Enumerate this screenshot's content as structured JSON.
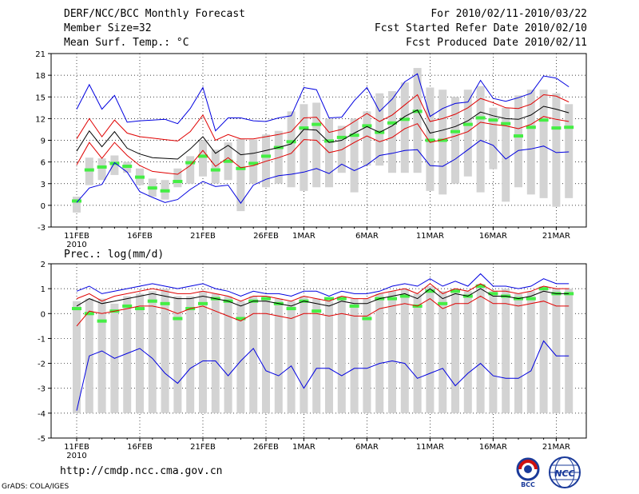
{
  "header": {
    "title": "DERF/NCC/BCC Monthly Forecast",
    "member_size": "Member Size=32",
    "variable": "Mean Surf. Temp.: °C",
    "period": "For 2010/02/11-2010/03/22",
    "fcst_started": "Fcst Started Refer Date 2010/02/10",
    "fcst_produced": "Fcst Produced Date 2010/02/11"
  },
  "footer": {
    "url": "http://cmdp.ncc.cma.gov.cn",
    "grads": "GrADS: COLA/IGES",
    "logo_bcc": "BCC",
    "logo_ncc": "NCC"
  },
  "colors": {
    "box": "#d3d3d3",
    "median": "#44ee44",
    "mean": "#000000",
    "envelope": "#e00000",
    "extreme": "#0000e0"
  },
  "chart_data": [
    {
      "type": "line",
      "title": "Mean Surf. Temp.: °C",
      "x_labels": [
        "11FEB",
        "16FEB",
        "21FEB",
        "26FEB",
        "1MAR",
        "6MAR",
        "11MAR",
        "16MAR",
        "21MAR"
      ],
      "x_label_days": [
        0,
        5,
        10,
        15,
        18,
        23,
        28,
        33,
        38
      ],
      "x_year": "2010",
      "ylim": [
        -3,
        21
      ],
      "yticks": [
        -3,
        0,
        3,
        6,
        9,
        12,
        15,
        18,
        21
      ],
      "n_days": 40,
      "series": [
        {
          "name": "ensemble max",
          "values": [
            13.3,
            16.7,
            13.3,
            15.2,
            11.5,
            11.7,
            11.8,
            11.9,
            11.3,
            13.4,
            16.3,
            10.3,
            12.1,
            12.1,
            11.7,
            11.6,
            12.1,
            12.4,
            16.3,
            16.0,
            12.1,
            12.2,
            14.5,
            16.3,
            13.0,
            14.7,
            17.1,
            18.2,
            12.3,
            13.4,
            14.1,
            14.3,
            17.3,
            14.8,
            14.4,
            14.9,
            15.5,
            17.9,
            17.6,
            16.4
          ]
        },
        {
          "name": "mean + 1 sd",
          "values": [
            9.2,
            12.0,
            9.5,
            11.8,
            10.0,
            9.5,
            9.3,
            9.1,
            8.9,
            10.2,
            12.5,
            9.0,
            9.8,
            9.2,
            9.2,
            9.5,
            9.8,
            10.2,
            12.1,
            12.2,
            10.1,
            10.5,
            11.6,
            12.7,
            11.6,
            12.5,
            13.9,
            15.3,
            11.6,
            12.0,
            12.6,
            13.5,
            14.8,
            14.2,
            13.5,
            13.4,
            14.0,
            15.3,
            15.1,
            14.3
          ]
        },
        {
          "name": "ensemble mean",
          "values": [
            7.5,
            10.3,
            8.1,
            10.2,
            7.9,
            7.1,
            6.6,
            6.5,
            6.4,
            7.8,
            9.5,
            7.2,
            8.3,
            7.0,
            7.2,
            7.6,
            8.0,
            8.5,
            10.5,
            10.4,
            8.7,
            9.0,
            10.0,
            10.9,
            10.1,
            11.0,
            12.3,
            13.2,
            10.0,
            10.4,
            10.9,
            11.7,
            12.9,
            12.4,
            12.0,
            11.9,
            12.5,
            13.7,
            13.3,
            12.8
          ]
        },
        {
          "name": "mean - 1 sd",
          "values": [
            5.6,
            8.7,
            6.5,
            8.7,
            6.9,
            5.5,
            4.7,
            4.5,
            4.3,
            5.5,
            7.6,
            5.4,
            6.6,
            5.2,
            5.5,
            6.1,
            6.6,
            7.2,
            9.1,
            9.0,
            7.3,
            7.7,
            8.7,
            9.6,
            8.8,
            9.4,
            10.6,
            11.3,
            8.7,
            9.1,
            9.6,
            10.2,
            11.5,
            11.2,
            11.0,
            10.6,
            11.2,
            12.3,
            11.9,
            11.6
          ]
        },
        {
          "name": "ensemble min",
          "values": [
            0.4,
            2.4,
            2.9,
            5.9,
            4.6,
            1.9,
            1.1,
            0.4,
            0.8,
            2.2,
            3.3,
            2.6,
            2.8,
            0.3,
            2.8,
            3.6,
            4.1,
            4.3,
            4.6,
            5.1,
            4.4,
            5.7,
            4.8,
            5.6,
            6.9,
            7.2,
            7.6,
            7.7,
            5.5,
            5.4,
            6.4,
            7.7,
            9.0,
            8.3,
            6.4,
            7.6,
            7.8,
            8.2,
            7.3,
            7.4
          ]
        },
        {
          "name": "median",
          "values": [
            0.6,
            4.9,
            5.3,
            5.8,
            5.4,
            3.9,
            2.4,
            2.0,
            3.3,
            5.9,
            6.8,
            4.9,
            6.1,
            5.1,
            5.8,
            6.8,
            8.0,
            8.8,
            10.7,
            11.2,
            8.9,
            9.4,
            9.7,
            11.0,
            10.1,
            11.4,
            11.9,
            13.0,
            9.0,
            9.0,
            10.2,
            11.2,
            12.1,
            11.8,
            11.3,
            9.6,
            10.8,
            11.8,
            10.7,
            10.8
          ]
        },
        {
          "name": "box upper",
          "values": [
            1.2,
            6.6,
            6.5,
            6.9,
            6.0,
            5.1,
            3.7,
            3.5,
            5.1,
            6.8,
            9.0,
            7.7,
            8.7,
            9.2,
            9.1,
            9.8,
            10.3,
            13.0,
            14.0,
            14.2,
            12.0,
            11.0,
            12.0,
            13.0,
            15.5,
            15.8,
            17.0,
            19.0,
            16.3,
            16.0,
            15.0,
            16.0,
            16.5,
            13.5,
            13.5,
            15.2,
            16.0,
            16.0,
            15.5,
            14.0
          ]
        },
        {
          "name": "box lower",
          "values": [
            -1.0,
            2.8,
            3.5,
            4.2,
            4.5,
            2.8,
            1.2,
            0.8,
            2.5,
            3.0,
            4.0,
            3.0,
            3.5,
            -0.8,
            3.0,
            2.5,
            3.0,
            2.5,
            2.0,
            2.5,
            2.5,
            4.5,
            1.8,
            5.5,
            5.5,
            4.5,
            4.5,
            4.5,
            2.0,
            1.5,
            3.0,
            4.0,
            1.8,
            5.0,
            0.5,
            2.5,
            1.5,
            1.0,
            -0.2,
            1.0
          ]
        }
      ]
    },
    {
      "type": "line",
      "title": "Prec.: log(mm/d)",
      "x_labels": [
        "11FEB",
        "16FEB",
        "21FEB",
        "26FEB",
        "1MAR",
        "6MAR",
        "11MAR",
        "16MAR",
        "21MAR"
      ],
      "x_label_days": [
        0,
        5,
        10,
        15,
        18,
        23,
        28,
        33,
        38
      ],
      "x_year": "2010",
      "ylim": [
        -5,
        2
      ],
      "yticks": [
        -5,
        -4,
        -3,
        -2,
        -1,
        0,
        1,
        2
      ],
      "n_days": 40,
      "series": [
        {
          "name": "ensemble max",
          "values": [
            0.9,
            1.1,
            0.8,
            0.9,
            1.0,
            1.1,
            1.2,
            1.1,
            1.0,
            1.1,
            1.2,
            1.0,
            0.9,
            0.7,
            0.9,
            0.8,
            0.8,
            0.7,
            0.9,
            0.9,
            0.7,
            0.9,
            0.8,
            0.8,
            0.9,
            1.1,
            1.2,
            1.1,
            1.4,
            1.1,
            1.3,
            1.1,
            1.6,
            1.1,
            1.1,
            1.0,
            1.1,
            1.4,
            1.2,
            1.2
          ]
        },
        {
          "name": "mean + 1 sd",
          "values": [
            0.6,
            0.8,
            0.5,
            0.7,
            0.8,
            0.9,
            1.0,
            0.9,
            0.8,
            0.8,
            0.9,
            0.8,
            0.7,
            0.5,
            0.7,
            0.7,
            0.6,
            0.5,
            0.7,
            0.6,
            0.5,
            0.7,
            0.6,
            0.6,
            0.8,
            0.9,
            1.0,
            0.8,
            1.2,
            0.8,
            1.0,
            0.9,
            1.2,
            0.9,
            0.9,
            0.8,
            0.9,
            1.1,
            1.0,
            1.0
          ]
        },
        {
          "name": "ensemble mean",
          "values": [
            0.3,
            0.6,
            0.4,
            0.5,
            0.6,
            0.7,
            0.8,
            0.7,
            0.6,
            0.6,
            0.7,
            0.6,
            0.5,
            0.3,
            0.5,
            0.5,
            0.4,
            0.3,
            0.5,
            0.4,
            0.3,
            0.5,
            0.4,
            0.4,
            0.6,
            0.7,
            0.8,
            0.6,
            1.0,
            0.6,
            0.8,
            0.7,
            1.0,
            0.7,
            0.7,
            0.6,
            0.7,
            0.9,
            0.8,
            0.8
          ]
        },
        {
          "name": "mean - 1 sd",
          "values": [
            -0.5,
            0.1,
            0.0,
            0.1,
            0.2,
            0.3,
            0.3,
            0.2,
            0.0,
            0.2,
            0.3,
            0.1,
            -0.1,
            -0.3,
            0.0,
            0.0,
            -0.1,
            -0.2,
            0.0,
            0.0,
            -0.1,
            0.0,
            -0.1,
            -0.1,
            0.2,
            0.3,
            0.4,
            0.3,
            0.6,
            0.2,
            0.4,
            0.4,
            0.7,
            0.4,
            0.4,
            0.3,
            0.4,
            0.5,
            0.3,
            0.3
          ]
        },
        {
          "name": "ensemble min",
          "values": [
            -3.9,
            -1.7,
            -1.5,
            -1.8,
            -1.6,
            -1.4,
            -1.8,
            -2.4,
            -2.8,
            -2.2,
            -1.9,
            -1.9,
            -2.5,
            -1.9,
            -1.4,
            -2.3,
            -2.5,
            -2.1,
            -3.0,
            -2.2,
            -2.2,
            -2.5,
            -2.2,
            -2.2,
            -2.0,
            -1.9,
            -2.0,
            -2.6,
            -2.4,
            -2.2,
            -2.9,
            -2.4,
            -2.0,
            -2.5,
            -2.6,
            -2.6,
            -2.3,
            -1.1,
            -1.7,
            -1.7
          ]
        },
        {
          "name": "median",
          "values": [
            0.2,
            0.0,
            -0.3,
            0.1,
            0.3,
            0.2,
            0.5,
            0.4,
            -0.2,
            0.2,
            0.4,
            0.6,
            0.5,
            -0.2,
            0.5,
            0.6,
            0.4,
            0.2,
            0.5,
            0.1,
            0.6,
            0.6,
            0.3,
            -0.2,
            0.6,
            0.6,
            0.7,
            0.3,
            0.9,
            0.4,
            0.9,
            0.7,
            1.1,
            0.8,
            0.7,
            0.6,
            0.6,
            1.0,
            0.8,
            0.8
          ]
        },
        {
          "name": "box upper",
          "values": [
            0.5,
            0.6,
            0.6,
            0.4,
            0.7,
            0.8,
            0.9,
            1.0,
            0.7,
            0.7,
            0.9,
            0.8,
            0.7,
            0.5,
            0.7,
            0.7,
            0.6,
            0.5,
            0.7,
            0.6,
            0.5,
            0.7,
            0.6,
            0.6,
            0.8,
            0.9,
            1.0,
            0.8,
            1.1,
            0.9,
            1.0,
            0.9,
            1.2,
            0.9,
            1.0,
            0.8,
            0.9,
            1.1,
            1.0,
            1.0
          ]
        },
        {
          "name": "box lower",
          "values": [
            -4.0,
            -4.0,
            -4.0,
            -4.0,
            -4.0,
            -4.0,
            -4.0,
            -4.0,
            -4.0,
            -4.0,
            -4.0,
            -4.0,
            -4.0,
            -4.0,
            -4.0,
            -4.0,
            -4.0,
            -4.0,
            -4.0,
            -4.0,
            -4.0,
            -4.0,
            -4.0,
            -4.0,
            -4.0,
            -4.0,
            -4.0,
            -4.0,
            -4.0,
            -4.0,
            -4.0,
            -4.0,
            -4.0,
            -4.0,
            -4.0,
            -4.0,
            -4.0,
            -4.0,
            -4.0,
            -4.0
          ]
        }
      ]
    }
  ],
  "prec_label": "Prec.: log(mm/d)"
}
